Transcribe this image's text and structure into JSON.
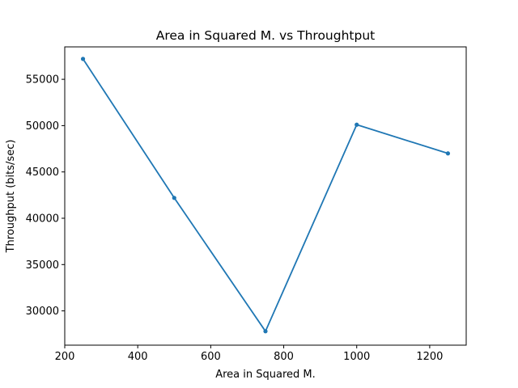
{
  "chart_data": {
    "type": "line",
    "title": "Area in Squared M. vs Throughtput",
    "xlabel": "Area in Squared M.",
    "ylabel": "Throughput (bits/sec)",
    "x": [
      250,
      500,
      750,
      1000,
      1250
    ],
    "series": [
      {
        "values": [
          57200,
          42200,
          27800,
          50100,
          47000
        ],
        "color": "#1f77b4",
        "marker": "dot"
      }
    ],
    "xlim": [
      200,
      1300
    ],
    "ylim": [
      26300,
      58500
    ],
    "xticks": [
      200,
      400,
      600,
      800,
      1000,
      1200
    ],
    "yticks": [
      30000,
      35000,
      40000,
      45000,
      50000,
      55000
    ],
    "grid": false,
    "legend": "none"
  }
}
